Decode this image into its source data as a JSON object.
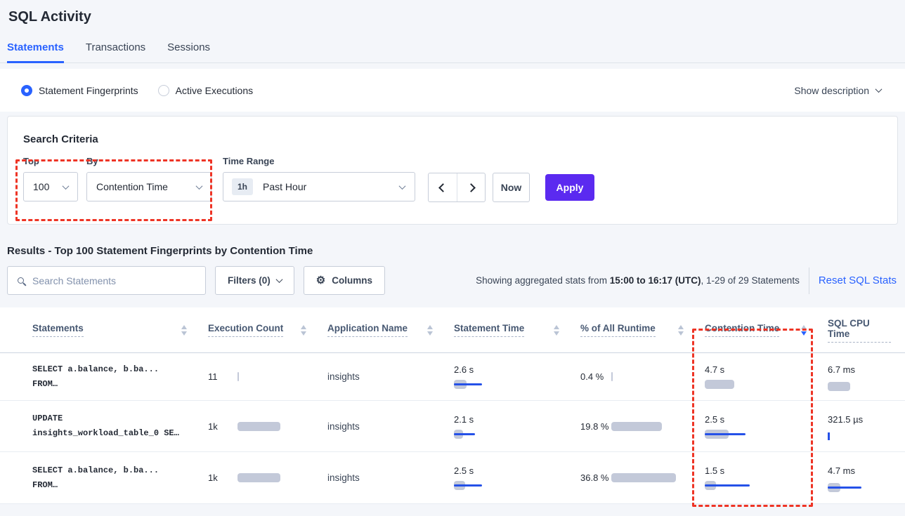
{
  "page_title": "SQL Activity",
  "tabs": {
    "statements": "Statements",
    "transactions": "Transactions",
    "sessions": "Sessions"
  },
  "view": {
    "fingerprints_label": "Statement Fingerprints",
    "active_executions_label": "Active Executions",
    "show_description_label": "Show description"
  },
  "criteria": {
    "heading": "Search Criteria",
    "top_label": "Top",
    "top_value": "100",
    "by_label": "By",
    "by_value": "Contention Time",
    "time_range_label": "Time Range",
    "time_badge": "1h",
    "time_value": "Past Hour",
    "now_label": "Now",
    "apply_label": "Apply"
  },
  "results": {
    "heading": "Results - Top 100 Statement Fingerprints by Contention Time",
    "search_placeholder": "Search Statements",
    "filters_label": "Filters (0)",
    "columns_label": "Columns",
    "showing_prefix": "Showing aggregated stats from ",
    "showing_bold": "15:00 to 16:17 (UTC)",
    "showing_suffix": ", 1-29 of 29 Statements",
    "reset_label": "Reset SQL Stats"
  },
  "table": {
    "headers": {
      "statements": "Statements",
      "execution": "Execution Count",
      "application": "Application Name",
      "statement_time": "Statement Time",
      "runtime": "% of All Runtime",
      "contention": "Contention Time",
      "cpu": "SQL CPU Time"
    },
    "sort": {
      "column": "Contention Time",
      "direction": "desc"
    },
    "rows": [
      {
        "query_line1": "SELECT a.balance, b.ba...",
        "query_line2": "FROM…",
        "execution": "11",
        "application": "insights",
        "statement_time": "2.6 s",
        "runtime": "0.4 %",
        "contention": "4.7 s",
        "cpu": "6.7 ms",
        "bars": {
          "execution": {
            "gray_w": 2
          },
          "statement_time": {
            "gray_w": 18,
            "blue_w": 40
          },
          "runtime": {
            "gray_w": 2
          },
          "contention": {
            "gray_w": 42
          },
          "cpu": {
            "gray_w": 32
          }
        }
      },
      {
        "query_line1": "UPDATE",
        "query_line2": "insights_workload_table_0 SE…",
        "execution": "1k",
        "application": "insights",
        "statement_time": "2.1 s",
        "runtime": "19.8 %",
        "contention": "2.5 s",
        "cpu": "321.5 µs",
        "bars": {
          "execution": {
            "gray_w": 61
          },
          "statement_time": {
            "gray_w": 13,
            "blue_w": 30
          },
          "runtime": {
            "gray_w": 72
          },
          "contention": {
            "gray_w": 34,
            "blue_w": 58
          },
          "cpu": {
            "blue_tick": true
          }
        }
      },
      {
        "query_line1": "SELECT a.balance, b.ba...",
        "query_line2": "FROM…",
        "execution": "1k",
        "application": "insights",
        "statement_time": "2.5 s",
        "runtime": "36.8 %",
        "contention": "1.5 s",
        "cpu": "4.7 ms",
        "bars": {
          "execution": {
            "gray_w": 61
          },
          "statement_time": {
            "gray_w": 16,
            "blue_w": 40
          },
          "runtime": {
            "gray_w": 92
          },
          "contention": {
            "gray_w": 16,
            "blue_w": 64
          },
          "cpu": {
            "gray_w": 18,
            "blue_w": 48
          }
        }
      }
    ]
  },
  "colors": {
    "accent_blue": "#2962ff",
    "apply_purple": "#5b2af0",
    "annotation_red": "#ee3425",
    "bar_gray": "#c3c9d9",
    "bar_blue": "#2551e8",
    "page_bg": "#f4f6fa"
  }
}
